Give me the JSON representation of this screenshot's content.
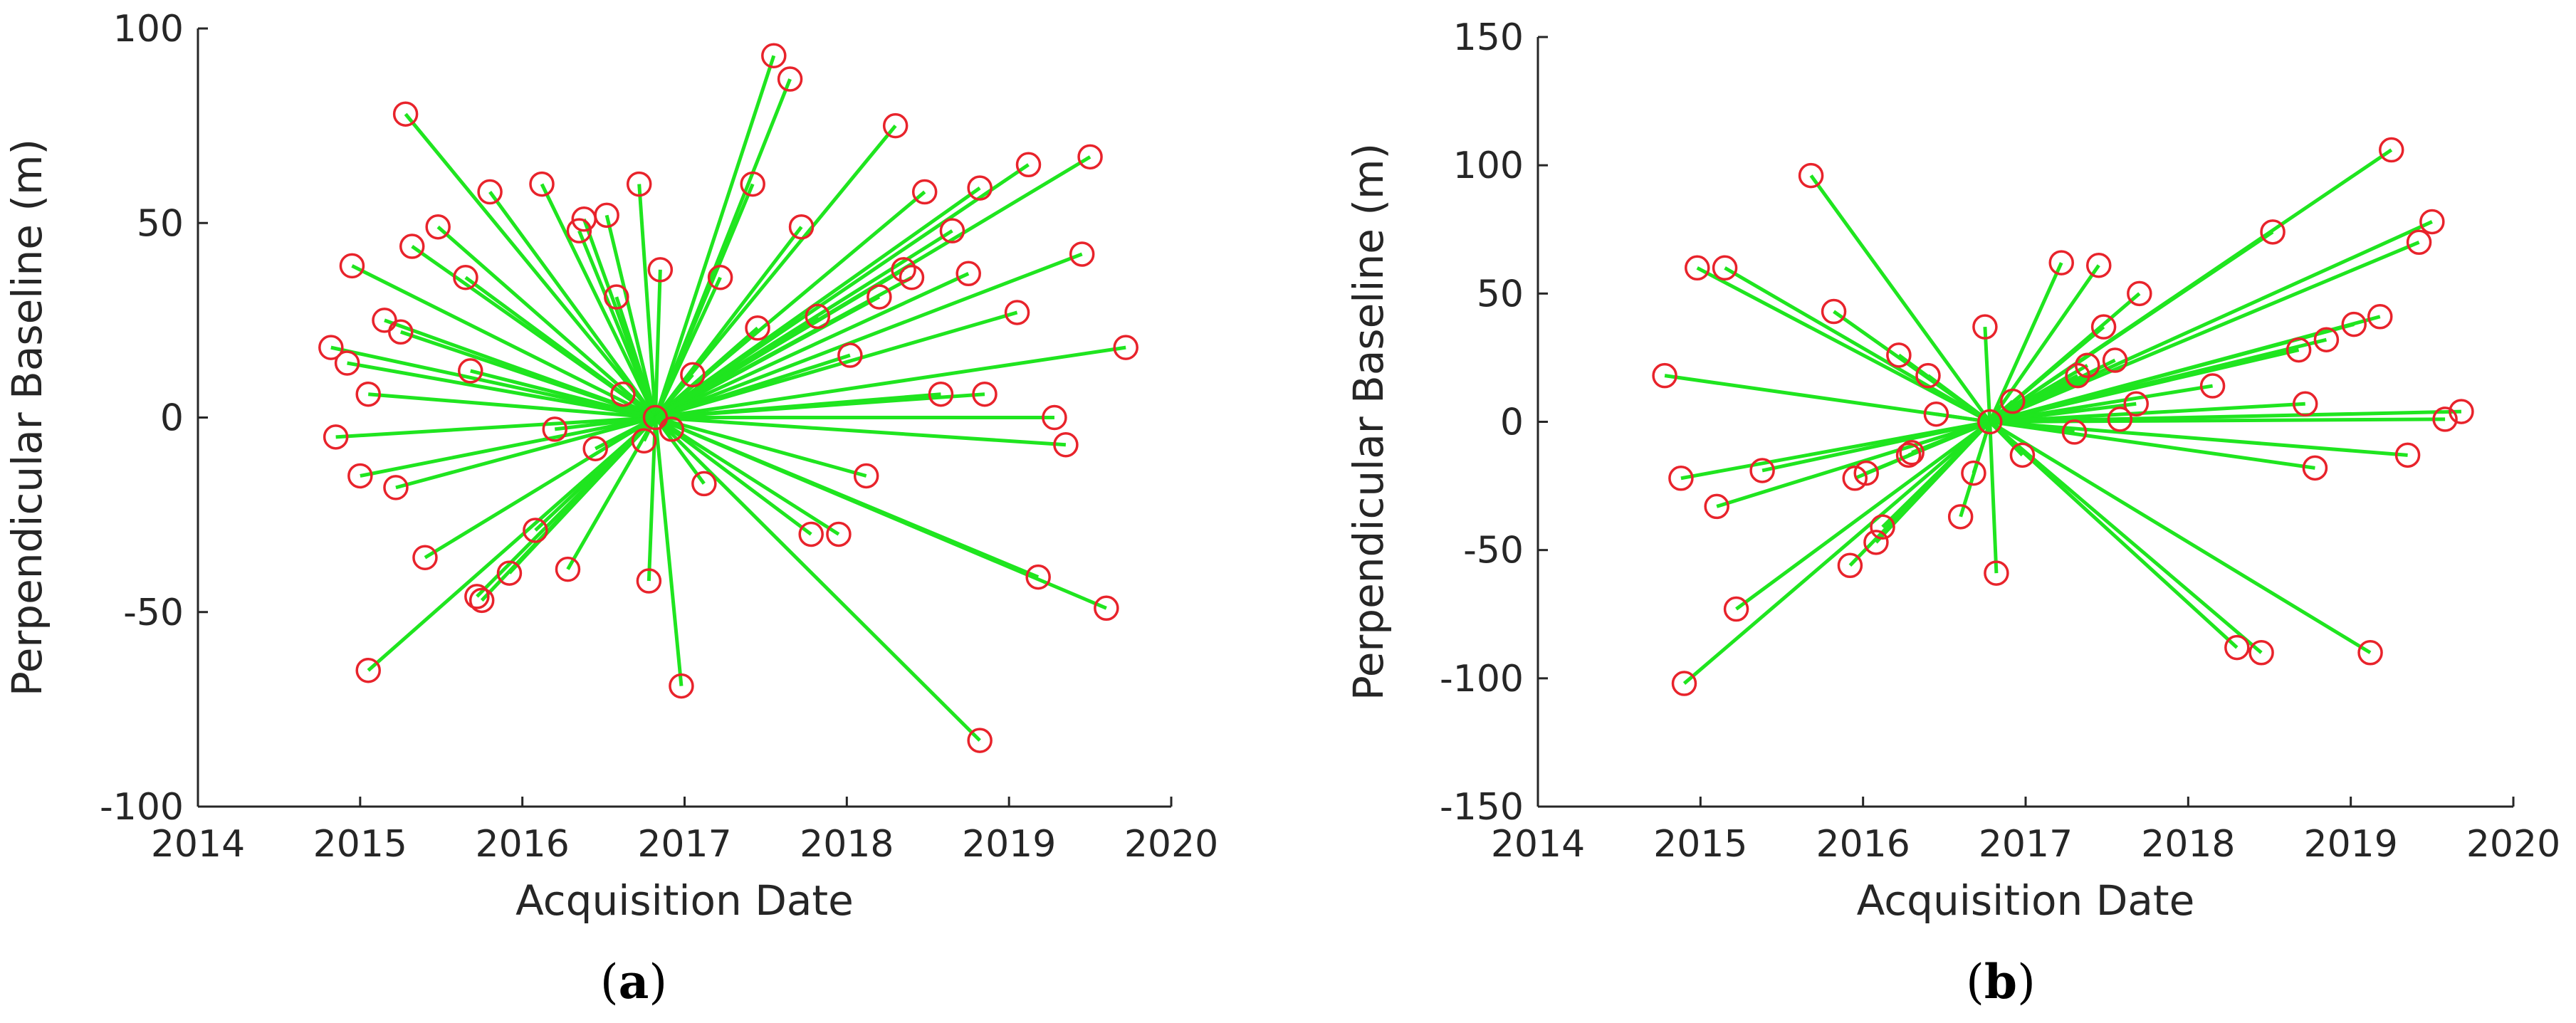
{
  "chart_data": [
    {
      "type": "scatter",
      "panel": "a",
      "caption_letter": "a",
      "xlabel": "Acquisition Date",
      "ylabel": "Perpendicular Baseline (m)",
      "xlim": [
        2014,
        2020
      ],
      "ylim": [
        -100,
        100
      ],
      "xticks": [
        2014,
        2015,
        2016,
        2017,
        2018,
        2019,
        2020
      ],
      "yticks": [
        -100,
        -50,
        0,
        50,
        100
      ],
      "xtick_labels": [
        "2014",
        "2015",
        "2016",
        "2017",
        "2018",
        "2019",
        "2020"
      ],
      "ytick_labels": [
        "-100",
        "-50",
        "0",
        "50",
        "100"
      ],
      "line_color": "#1fe51f",
      "marker_color": "#e8232b",
      "reference": [
        2016.82,
        0
      ],
      "points": [
        [
          2014.82,
          18
        ],
        [
          2014.85,
          -5
        ],
        [
          2014.92,
          14
        ],
        [
          2014.95,
          39
        ],
        [
          2015.0,
          -15
        ],
        [
          2015.05,
          6
        ],
        [
          2015.05,
          -65
        ],
        [
          2015.15,
          25
        ],
        [
          2015.22,
          -18
        ],
        [
          2015.25,
          22
        ],
        [
          2015.28,
          78
        ],
        [
          2015.32,
          44
        ],
        [
          2015.4,
          -36
        ],
        [
          2015.48,
          49
        ],
        [
          2015.65,
          36
        ],
        [
          2015.68,
          12
        ],
        [
          2015.72,
          -46
        ],
        [
          2015.75,
          -47
        ],
        [
          2015.8,
          58
        ],
        [
          2015.92,
          -40
        ],
        [
          2016.08,
          -29
        ],
        [
          2016.12,
          60
        ],
        [
          2016.2,
          -3
        ],
        [
          2016.28,
          -39
        ],
        [
          2016.35,
          48
        ],
        [
          2016.38,
          51
        ],
        [
          2016.45,
          -8
        ],
        [
          2016.52,
          52
        ],
        [
          2016.58,
          31
        ],
        [
          2016.62,
          6
        ],
        [
          2016.72,
          60
        ],
        [
          2016.75,
          -6
        ],
        [
          2016.78,
          -42
        ],
        [
          2016.85,
          38
        ],
        [
          2016.92,
          -3
        ],
        [
          2016.98,
          -69
        ],
        [
          2017.05,
          11
        ],
        [
          2017.12,
          -17
        ],
        [
          2017.22,
          36
        ],
        [
          2017.42,
          60
        ],
        [
          2017.45,
          23
        ],
        [
          2017.55,
          93
        ],
        [
          2017.65,
          87
        ],
        [
          2017.72,
          49
        ],
        [
          2017.78,
          -30
        ],
        [
          2017.82,
          26
        ],
        [
          2017.95,
          -30
        ],
        [
          2018.02,
          16
        ],
        [
          2018.12,
          -15
        ],
        [
          2018.2,
          31
        ],
        [
          2018.3,
          75
        ],
        [
          2018.35,
          38
        ],
        [
          2018.4,
          36
        ],
        [
          2018.48,
          58
        ],
        [
          2018.58,
          6
        ],
        [
          2018.65,
          48
        ],
        [
          2018.75,
          37
        ],
        [
          2018.82,
          -83
        ],
        [
          2018.82,
          59
        ],
        [
          2018.85,
          6
        ],
        [
          2019.05,
          27
        ],
        [
          2019.12,
          65
        ],
        [
          2019.18,
          -41
        ],
        [
          2019.28,
          0
        ],
        [
          2019.35,
          -7
        ],
        [
          2019.45,
          42
        ],
        [
          2019.5,
          67
        ],
        [
          2019.6,
          -49
        ],
        [
          2019.72,
          18
        ]
      ]
    },
    {
      "type": "scatter",
      "panel": "b",
      "caption_letter": "b",
      "xlabel": "Acquisition Date",
      "ylabel": "Perpendicular Baseline (m)",
      "xlim": [
        2014,
        2020
      ],
      "ylim": [
        -150,
        150
      ],
      "xticks": [
        2014,
        2015,
        2016,
        2017,
        2018,
        2019,
        2020
      ],
      "yticks": [
        -150,
        -100,
        -50,
        0,
        50,
        100,
        150
      ],
      "xtick_labels": [
        "2014",
        "2015",
        "2016",
        "2017",
        "2018",
        "2019",
        "2020"
      ],
      "ytick_labels": [
        "-150",
        "-100",
        "-50",
        "0",
        "50",
        "100",
        "150"
      ],
      "line_color": "#1fe51f",
      "marker_color": "#e8232b",
      "reference": [
        2016.78,
        0
      ],
      "points": [
        [
          2014.78,
          18
        ],
        [
          2014.88,
          -22
        ],
        [
          2014.9,
          -102
        ],
        [
          2014.98,
          60
        ],
        [
          2015.1,
          -33
        ],
        [
          2015.15,
          60
        ],
        [
          2015.22,
          -73
        ],
        [
          2015.38,
          -19
        ],
        [
          2015.68,
          96
        ],
        [
          2015.82,
          43
        ],
        [
          2015.92,
          -56
        ],
        [
          2015.95,
          -22
        ],
        [
          2016.02,
          -20
        ],
        [
          2016.08,
          -47
        ],
        [
          2016.12,
          -41
        ],
        [
          2016.22,
          26
        ],
        [
          2016.28,
          -13
        ],
        [
          2016.3,
          -12
        ],
        [
          2016.4,
          18
        ],
        [
          2016.45,
          3
        ],
        [
          2016.6,
          -37
        ],
        [
          2016.68,
          -20
        ],
        [
          2016.75,
          37
        ],
        [
          2016.82,
          -59
        ],
        [
          2016.92,
          8
        ],
        [
          2016.98,
          -13
        ],
        [
          2017.22,
          62
        ],
        [
          2017.3,
          -4
        ],
        [
          2017.32,
          18
        ],
        [
          2017.38,
          22
        ],
        [
          2017.45,
          61
        ],
        [
          2017.48,
          37
        ],
        [
          2017.55,
          24
        ],
        [
          2017.58,
          1
        ],
        [
          2017.68,
          7
        ],
        [
          2017.7,
          50
        ],
        [
          2018.15,
          14
        ],
        [
          2018.3,
          -88
        ],
        [
          2018.45,
          -90
        ],
        [
          2018.52,
          74
        ],
        [
          2018.68,
          28
        ],
        [
          2018.72,
          7
        ],
        [
          2018.78,
          -18
        ],
        [
          2018.85,
          32
        ],
        [
          2019.02,
          38
        ],
        [
          2019.12,
          -90
        ],
        [
          2019.18,
          41
        ],
        [
          2019.25,
          106
        ],
        [
          2019.35,
          -13
        ],
        [
          2019.42,
          70
        ],
        [
          2019.5,
          78
        ],
        [
          2019.58,
          1
        ],
        [
          2019.68,
          4
        ]
      ]
    }
  ]
}
